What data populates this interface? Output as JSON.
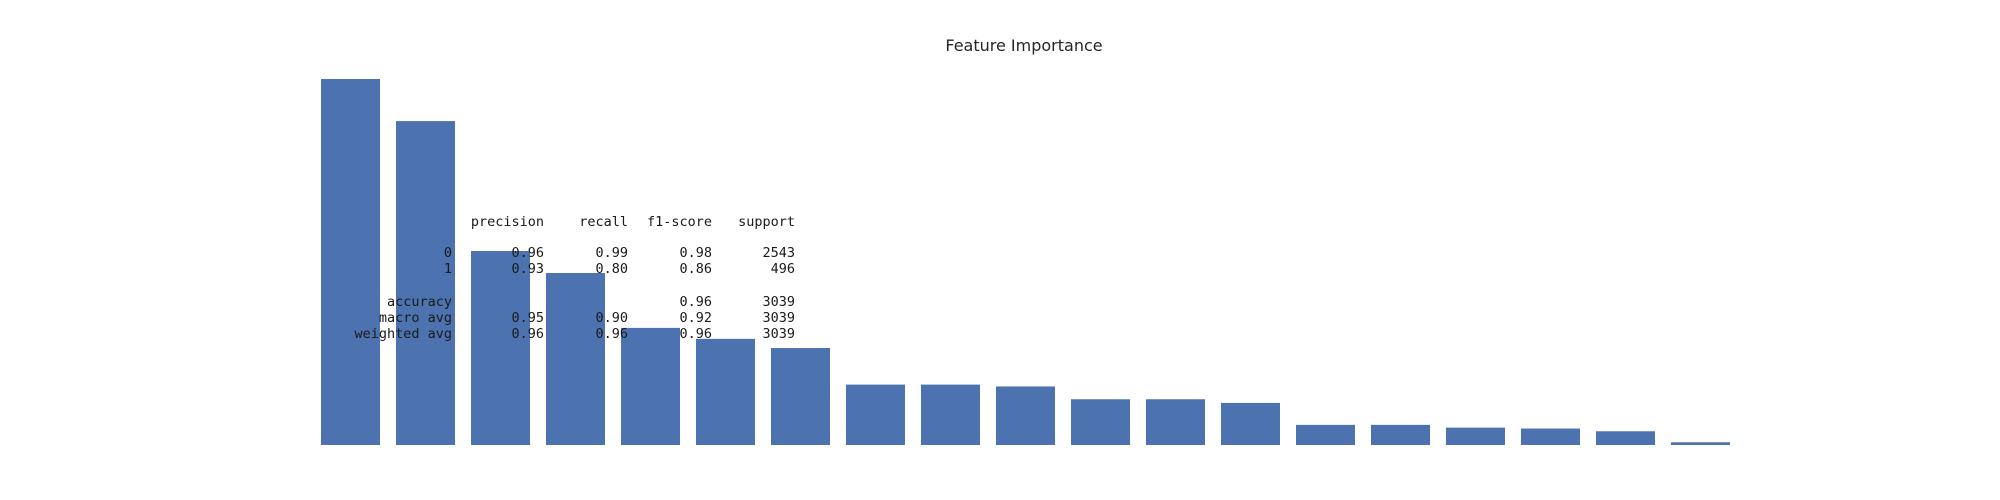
{
  "chart_data": {
    "type": "bar",
    "title": "Feature Importance",
    "xlabel": "",
    "ylabel": "",
    "grid": false,
    "bar_color": "#4c72b0",
    "ylim": [
      0,
      0.2
    ],
    "values": [
      0.2,
      0.177,
      0.106,
      0.094,
      0.064,
      0.058,
      0.053,
      0.033,
      0.033,
      0.032,
      0.025,
      0.025,
      0.023,
      0.011,
      0.011,
      0.0095,
      0.009,
      0.0075,
      0.0015
    ]
  },
  "classification_report": {
    "header": {
      "precision": "precision",
      "recall": "recall",
      "f1": "f1-score",
      "support": "support"
    },
    "rows": [
      {
        "label": "0",
        "precision": "0.96",
        "recall": "0.99",
        "f1": "0.98",
        "support": "2543"
      },
      {
        "label": "1",
        "precision": "0.93",
        "recall": "0.80",
        "f1": "0.86",
        "support": "496"
      },
      {
        "label": "accuracy",
        "precision": "",
        "recall": "",
        "f1": "0.96",
        "support": "3039"
      },
      {
        "label": "macro avg",
        "precision": "0.95",
        "recall": "0.90",
        "f1": "0.92",
        "support": "3039"
      },
      {
        "label": "weighted avg",
        "precision": "0.96",
        "recall": "0.96",
        "f1": "0.96",
        "support": "3039"
      }
    ]
  }
}
